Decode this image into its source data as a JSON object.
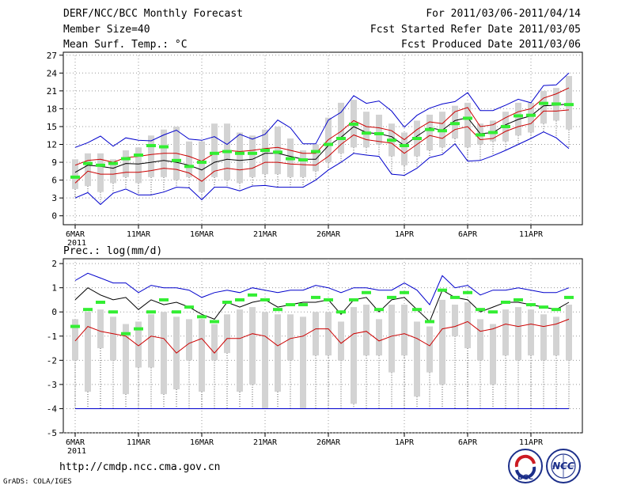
{
  "header": {
    "title": "DERF/NCC/BCC Monthly Forecast",
    "member": "Member Size=40",
    "variable": "Mean Surf. Temp.: °C",
    "period": "For 2011/03/06-2011/04/14",
    "refer": "Fcst Started Refer Date 2011/03/05",
    "produced": "Fcst Produced Date 2011/03/06"
  },
  "footer": {
    "url": "http://cmdp.ncc.cma.gov.cn",
    "grads": "GrADS: COLA/IGES",
    "logo_bcc": "BCC",
    "logo_ncc": "NCC"
  },
  "colors": {
    "envelope": "#0000cc",
    "spread": "#cc0000",
    "mean": "#000000",
    "box": "#d3d3d3",
    "whisker": "#555555",
    "median": "#33ee33",
    "grid": "#999999"
  },
  "chart_data": [
    {
      "type": "line",
      "title": "Mean Surf. Temp.: °C",
      "ylim": [
        -1.5,
        27.5
      ],
      "yticks": [
        0,
        3,
        6,
        9,
        12,
        15,
        18,
        21,
        24,
        27
      ],
      "xtick_labels": [
        "6MAR",
        "11MAR",
        "16MAR",
        "21MAR",
        "26MAR",
        "1APR",
        "6APR",
        "11APR"
      ],
      "xtick_index": [
        0,
        5,
        10,
        15,
        20,
        26,
        31,
        36
      ],
      "year_label": "2011",
      "median": [
        6.5,
        8.8,
        8.5,
        8.8,
        9.6,
        10.2,
        11.8,
        11.6,
        9.3,
        8.3,
        9.0,
        10.5,
        10.8,
        10.5,
        10.5,
        11.0,
        10.7,
        9.6,
        9.4,
        10.8,
        12.0,
        13.0,
        15.4,
        13.9,
        13.8,
        12.7,
        11.8,
        13.0,
        14.5,
        14.3,
        15.5,
        16.4,
        13.6,
        14.0,
        15.0,
        16.8,
        16.9,
        18.9,
        18.8,
        18.7
      ],
      "series": [
        {
          "name": "upper envelope",
          "values": [
            11.5,
            12.3,
            13.4,
            11.7,
            13.1,
            12.7,
            12.6,
            13.6,
            14.4,
            12.9,
            12.7,
            13.3,
            12.0,
            13.7,
            12.9,
            13.7,
            16.1,
            14.8,
            12.1,
            12.1,
            16.1,
            17.4,
            20.2,
            18.9,
            19.3,
            17.6,
            14.9,
            16.9,
            18.1,
            18.8,
            19.2,
            20.7,
            17.7,
            17.7,
            18.6,
            19.6,
            19.0,
            21.9,
            22.0,
            24.0
          ]
        },
        {
          "name": "mean + 1 sd",
          "values": [
            8.5,
            9.3,
            9.5,
            9.0,
            9.8,
            10.0,
            10.3,
            10.5,
            10.5,
            10.0,
            9.2,
            10.5,
            11.0,
            10.8,
            11.0,
            11.3,
            11.5,
            11.0,
            10.5,
            10.5,
            12.8,
            14.2,
            16.0,
            15.0,
            14.8,
            14.3,
            12.8,
            14.5,
            15.8,
            15.5,
            17.5,
            18.2,
            15.0,
            15.3,
            16.5,
            17.5,
            18.0,
            19.8,
            20.5,
            21.5
          ]
        },
        {
          "name": "ensemble mean",
          "values": [
            7.3,
            8.5,
            8.3,
            8.0,
            8.8,
            8.7,
            9.0,
            9.3,
            9.0,
            8.5,
            7.7,
            9.0,
            9.5,
            9.3,
            9.5,
            10.5,
            10.5,
            10.0,
            9.5,
            9.5,
            11.8,
            13.2,
            15.0,
            14.0,
            13.8,
            13.3,
            11.8,
            13.4,
            14.8,
            14.4,
            16.0,
            16.5,
            13.8,
            14.0,
            15.3,
            16.2,
            16.8,
            18.5,
            18.6,
            18.8
          ]
        },
        {
          "name": "mean - 1 sd",
          "values": [
            5.5,
            7.5,
            7.0,
            7.0,
            7.3,
            7.3,
            7.6,
            8.0,
            7.8,
            7.2,
            5.8,
            7.5,
            8.0,
            7.7,
            8.0,
            9.0,
            9.0,
            8.7,
            8.6,
            8.5,
            10.0,
            12.0,
            13.6,
            12.8,
            12.5,
            12.2,
            10.5,
            12.0,
            13.5,
            13.0,
            14.5,
            15.0,
            12.8,
            13.0,
            14.2,
            15.0,
            15.5,
            17.6,
            17.6,
            17.8
          ]
        },
        {
          "name": "lower envelope",
          "values": [
            3.0,
            3.9,
            1.9,
            3.8,
            4.5,
            3.5,
            3.5,
            4.0,
            4.8,
            4.7,
            2.7,
            4.8,
            4.8,
            4.2,
            5.0,
            5.1,
            4.8,
            4.8,
            4.8,
            6.0,
            7.7,
            9.0,
            10.5,
            10.2,
            10.0,
            7.0,
            6.8,
            8.0,
            9.8,
            10.3,
            12.1,
            9.2,
            9.3,
            10.1,
            11.0,
            12.0,
            13.0,
            14.1,
            13.1,
            11.3
          ]
        }
      ],
      "box_low": [
        4.5,
        5.0,
        4.0,
        5.5,
        6.5,
        5.5,
        6.5,
        6.5,
        6.0,
        6.5,
        4.0,
        6.5,
        6.0,
        5.5,
        6.5,
        7.0,
        7.0,
        6.5,
        6.5,
        7.5,
        9.0,
        10.5,
        11.5,
        11.5,
        12.0,
        10.0,
        8.5,
        10.0,
        11.0,
        11.5,
        13.0,
        11.5,
        12.0,
        12.5,
        12.5,
        13.5,
        14.0,
        15.5,
        16.0,
        14.5
      ],
      "box_high": [
        9.5,
        10.5,
        10.5,
        9.5,
        11.0,
        11.5,
        13.5,
        14.5,
        15.0,
        12.5,
        12.5,
        15.5,
        15.5,
        14.0,
        13.5,
        14.5,
        15.0,
        13.0,
        11.0,
        12.0,
        16.5,
        19.0,
        19.5,
        17.5,
        17.0,
        15.5,
        14.0,
        16.0,
        17.0,
        17.5,
        18.5,
        19.0,
        15.5,
        16.0,
        17.5,
        19.0,
        19.0,
        21.0,
        21.5,
        23.5
      ]
    },
    {
      "type": "line",
      "title": "Prec.: log(mm/d)",
      "ylim": [
        -5,
        2.2
      ],
      "yticks": [
        -5,
        -4,
        -3,
        -2,
        -1,
        0,
        1,
        2
      ],
      "xtick_labels": [
        "6MAR",
        "11MAR",
        "16MAR",
        "21MAR",
        "26MAR",
        "1APR",
        "6APR",
        "11APR"
      ],
      "xtick_index": [
        0,
        5,
        10,
        15,
        20,
        26,
        31,
        36
      ],
      "year_label": "2011",
      "baseline": -4,
      "median": [
        -0.6,
        0.1,
        0.4,
        0.0,
        -0.9,
        -0.7,
        0.0,
        0.5,
        0.0,
        0.2,
        -0.2,
        -0.4,
        0.4,
        0.5,
        0.7,
        0.5,
        0.1,
        0.3,
        0.3,
        0.6,
        0.5,
        0.0,
        0.5,
        0.8,
        0.1,
        0.6,
        0.8,
        0.1,
        -0.4,
        0.9,
        0.6,
        0.8,
        0.1,
        0.0,
        0.4,
        0.5,
        0.3,
        0.2,
        0.1,
        0.6
      ],
      "series": [
        {
          "name": "upper envelope",
          "values": [
            1.3,
            1.6,
            1.4,
            1.2,
            1.2,
            0.8,
            1.1,
            1.0,
            1.0,
            0.9,
            0.6,
            0.8,
            0.9,
            0.8,
            1.0,
            0.9,
            0.8,
            0.9,
            0.9,
            1.1,
            1.0,
            0.8,
            1.0,
            1.0,
            0.9,
            0.9,
            1.2,
            0.9,
            0.3,
            1.5,
            1.0,
            1.1,
            0.7,
            0.9,
            0.9,
            1.0,
            0.9,
            0.8,
            0.8,
            1.0
          ]
        },
        {
          "name": "mean",
          "values": [
            0.5,
            1.0,
            0.7,
            0.5,
            0.6,
            0.1,
            0.5,
            0.3,
            0.4,
            0.2,
            -0.1,
            -0.3,
            0.4,
            0.2,
            0.4,
            0.5,
            0.2,
            0.3,
            0.4,
            0.4,
            0.5,
            -0.1,
            0.5,
            0.6,
            0.0,
            0.5,
            0.6,
            0.1,
            -0.4,
            0.9,
            0.6,
            0.5,
            0.0,
            0.2,
            0.4,
            0.4,
            0.3,
            0.2,
            0.1,
            0.4
          ]
        },
        {
          "name": "lower spread",
          "values": [
            -1.2,
            -0.6,
            -0.8,
            -0.9,
            -1.0,
            -1.4,
            -1.0,
            -1.1,
            -1.7,
            -1.3,
            -1.1,
            -1.7,
            -1.1,
            -1.1,
            -0.9,
            -1.0,
            -1.4,
            -1.1,
            -1.0,
            -0.7,
            -0.7,
            -1.3,
            -0.9,
            -0.8,
            -1.2,
            -1.0,
            -0.9,
            -1.1,
            -1.4,
            -0.7,
            -0.6,
            -0.4,
            -0.8,
            -0.7,
            -0.5,
            -0.6,
            -0.5,
            -0.6,
            -0.5,
            -0.3
          ]
        }
      ],
      "box_low": [
        -2.0,
        -3.3,
        -1.5,
        -2.0,
        -3.4,
        -2.3,
        -2.3,
        -3.4,
        -3.2,
        -2.0,
        -3.3,
        -2.0,
        -1.7,
        -3.3,
        -3.0,
        -4.0,
        -3.3,
        -2.0,
        -4.0,
        -1.8,
        -1.8,
        -2.0,
        -3.8,
        -1.8,
        -1.8,
        -2.5,
        -1.8,
        -3.5,
        -2.5,
        -3.0,
        -1.0,
        -1.5,
        -2.0,
        -3.0,
        -1.8,
        -2.0,
        -1.8,
        -2.0,
        -1.8,
        -2.0
      ],
      "box_high": [
        -0.3,
        0.0,
        0.1,
        -0.2,
        -0.5,
        -0.4,
        -0.1,
        0.0,
        -0.2,
        -0.3,
        -0.3,
        -0.5,
        -0.1,
        0.1,
        0.2,
        0.0,
        -0.1,
        -0.1,
        -0.2,
        0.0,
        0.0,
        -0.4,
        0.2,
        0.3,
        -0.3,
        0.3,
        0.3,
        -0.4,
        -0.6,
        0.5,
        0.3,
        0.4,
        -0.3,
        -0.5,
        0.1,
        0.2,
        0.1,
        -0.1,
        -0.2,
        0.3
      ]
    }
  ]
}
